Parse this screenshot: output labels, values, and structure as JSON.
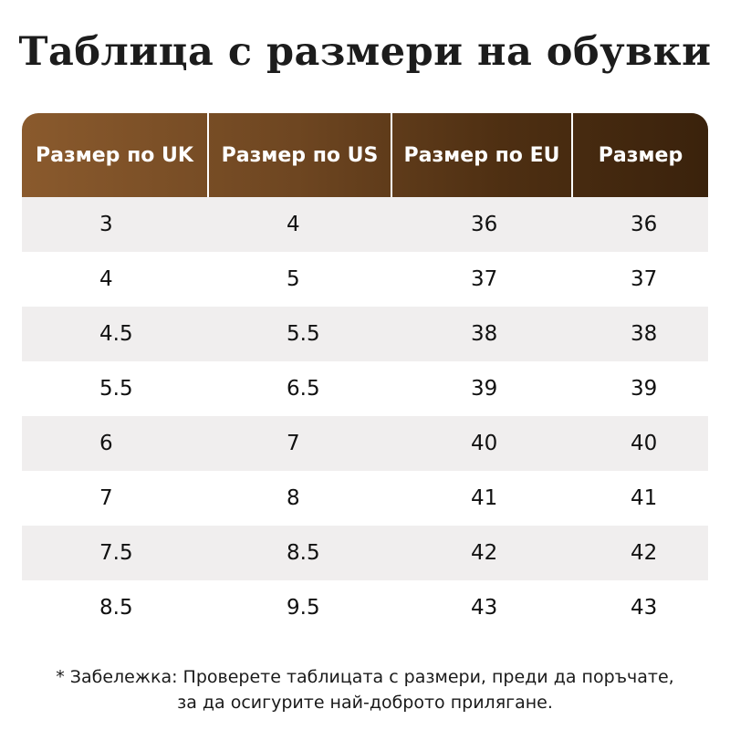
{
  "title": "Таблица с размери на обувки",
  "table": {
    "headers": [
      "Размер по UK",
      "Размер по US",
      "Размер по EU",
      "Размер"
    ],
    "rows": [
      [
        "3",
        "4",
        "36",
        "36"
      ],
      [
        "4",
        "5",
        "37",
        "37"
      ],
      [
        "4.5",
        "5.5",
        "38",
        "38"
      ],
      [
        "5.5",
        "6.5",
        "39",
        "39"
      ],
      [
        "6",
        "7",
        "40",
        "40"
      ],
      [
        "7",
        "8",
        "41",
        "41"
      ],
      [
        "7.5",
        "8.5",
        "42",
        "42"
      ],
      [
        "8.5",
        "9.5",
        "43",
        "43"
      ]
    ]
  },
  "note": {
    "line1": "* Забележка: Проверете таблицата с размери, преди да поръчате,",
    "line2": "за да осигурите най-доброто прилягане."
  },
  "colors": {
    "header_gradient_start": "#8a5a2d",
    "header_gradient_end": "#3a220c",
    "shaded_row": "#f0eeee",
    "header_text": "#ffffff"
  }
}
